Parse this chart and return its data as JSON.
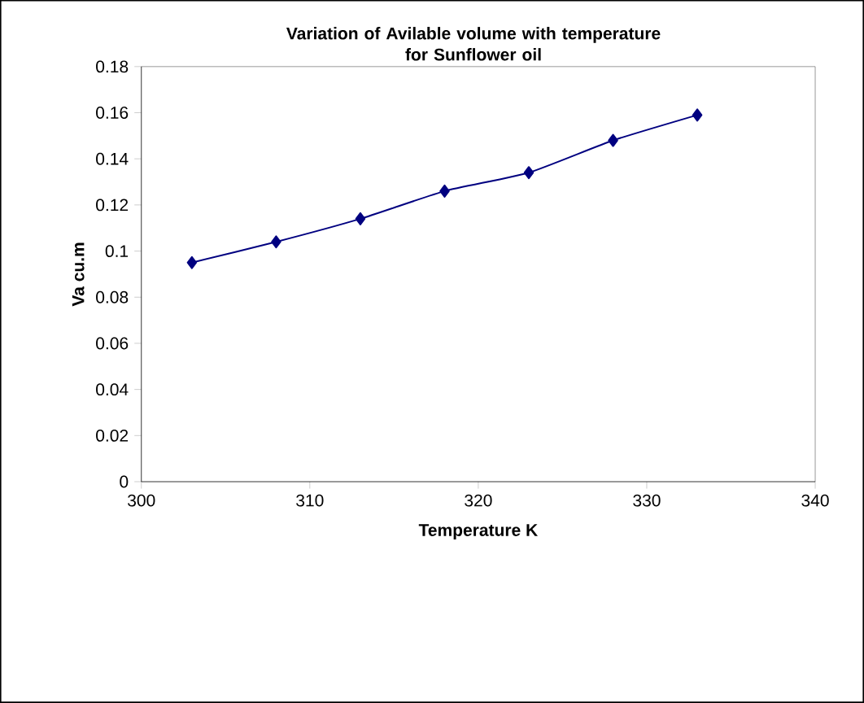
{
  "chart_data": {
    "type": "line",
    "title": "Variation of Avilable volume with temperature\nfor Sunflower oil",
    "xlabel": "Temperature K",
    "ylabel": "Va cu.m",
    "x": [
      303,
      308,
      313,
      318,
      323,
      328,
      333
    ],
    "series": [
      {
        "color": "#000080",
        "values": [
          0.095,
          0.104,
          0.114,
          0.126,
          0.134,
          0.148,
          0.159
        ]
      }
    ],
    "xlim": [
      300,
      340
    ],
    "xticks": [
      300,
      310,
      320,
      330,
      340
    ],
    "ylim": [
      0,
      0.18
    ],
    "yticks": [
      {
        "value": 0,
        "label": "0"
      },
      {
        "value": 0.02,
        "label": "0.02"
      },
      {
        "value": 0.04,
        "label": "0.04"
      },
      {
        "value": 0.06,
        "label": "0.06"
      },
      {
        "value": 0.08,
        "label": "0.08"
      },
      {
        "value": 0.1,
        "label": "0.1"
      },
      {
        "value": 0.12,
        "label": "0.12"
      },
      {
        "value": 0.14,
        "label": "0.14"
      },
      {
        "value": 0.16,
        "label": "0.16"
      },
      {
        "value": 0.18,
        "label": "0.18"
      }
    ],
    "marker": "diamond",
    "line_style": "solid",
    "grid": false
  }
}
